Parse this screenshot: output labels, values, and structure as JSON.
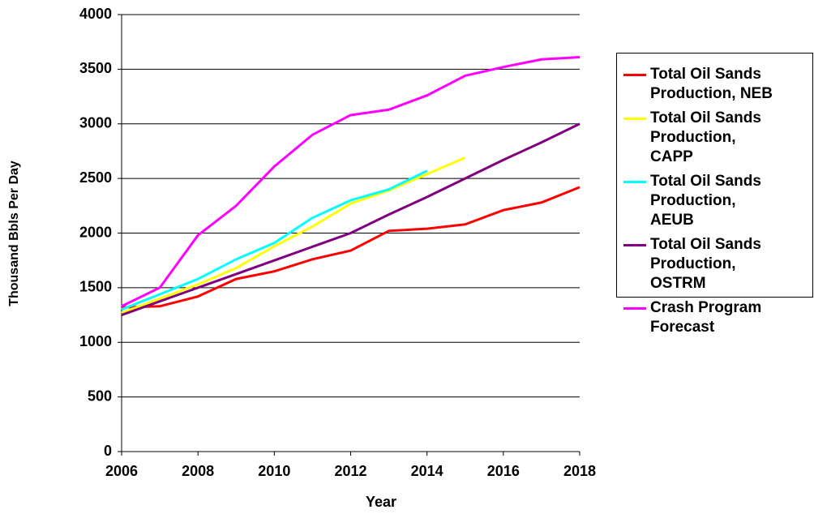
{
  "chart_data": {
    "type": "line",
    "x_label": "Year",
    "y_label": "Thousand Bbls Per Day",
    "x": [
      2006,
      2007,
      2008,
      2009,
      2010,
      2011,
      2012,
      2013,
      2014,
      2015,
      2016,
      2017,
      2018
    ],
    "series": [
      {
        "name": "Total Oil Sands Production, NEB",
        "color": "#ff0000",
        "values": [
          1320,
          1330,
          1420,
          1580,
          1650,
          1760,
          1840,
          2020,
          2040,
          2080,
          2210,
          2280,
          2420
        ]
      },
      {
        "name": "Total Oil Sands Production, CAPP",
        "color": "#ffff00",
        "values": [
          1270,
          1400,
          1530,
          1680,
          1880,
          2060,
          2270,
          2390,
          2540,
          2690,
          null,
          null,
          null
        ]
      },
      {
        "name": "Total Oil Sands Production, AEUB",
        "color": "#00ffff",
        "values": [
          1300,
          1440,
          1580,
          1760,
          1910,
          2140,
          2300,
          2400,
          2570,
          null,
          null,
          null,
          null
        ]
      },
      {
        "name": "Total Oil Sands Production, OSTRM",
        "color": "#800080",
        "values": [
          1250,
          1375,
          1500,
          1625,
          1750,
          1875,
          2000,
          2170,
          2330,
          2500,
          2670,
          2830,
          3000
        ]
      },
      {
        "name": "Crash Program Forecast",
        "color": "#ff00ff",
        "values": [
          1330,
          1500,
          1980,
          2250,
          2610,
          2900,
          3080,
          3130,
          3260,
          3440,
          3520,
          3590,
          3610
        ]
      }
    ],
    "xlim": [
      2006,
      2018
    ],
    "xticks": [
      2006,
      2008,
      2010,
      2012,
      2014,
      2016,
      2018
    ],
    "ylim": [
      0,
      4000
    ],
    "yticks": [
      0,
      500,
      1000,
      1500,
      2000,
      2500,
      3000,
      3500,
      4000
    ],
    "grid": true
  }
}
